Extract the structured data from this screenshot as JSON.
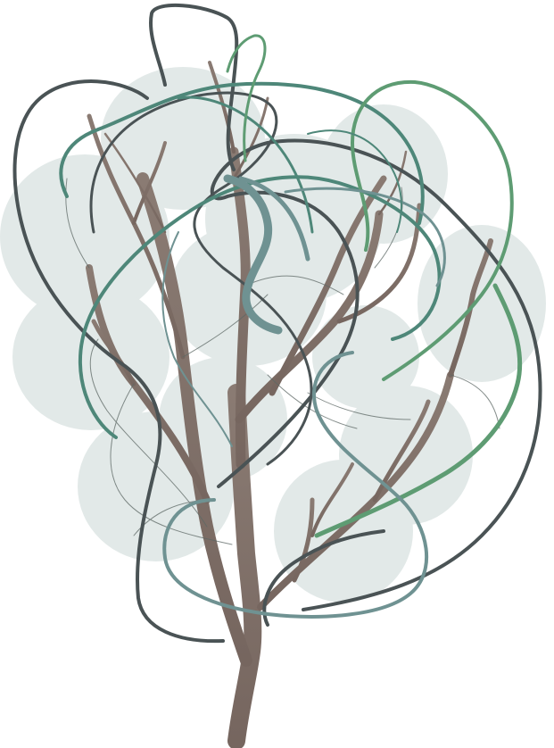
{
  "artwork": {
    "subject": "stylized-tree-illustration",
    "colors": {
      "background": "#ffffff",
      "foliage": "#e2e9e8",
      "trunk": "#7a6b64",
      "dark_line": "#4a5355",
      "teal_line": "#4e8779",
      "green_line": "#5e9c73",
      "slate_line": "#6f9292"
    }
  }
}
